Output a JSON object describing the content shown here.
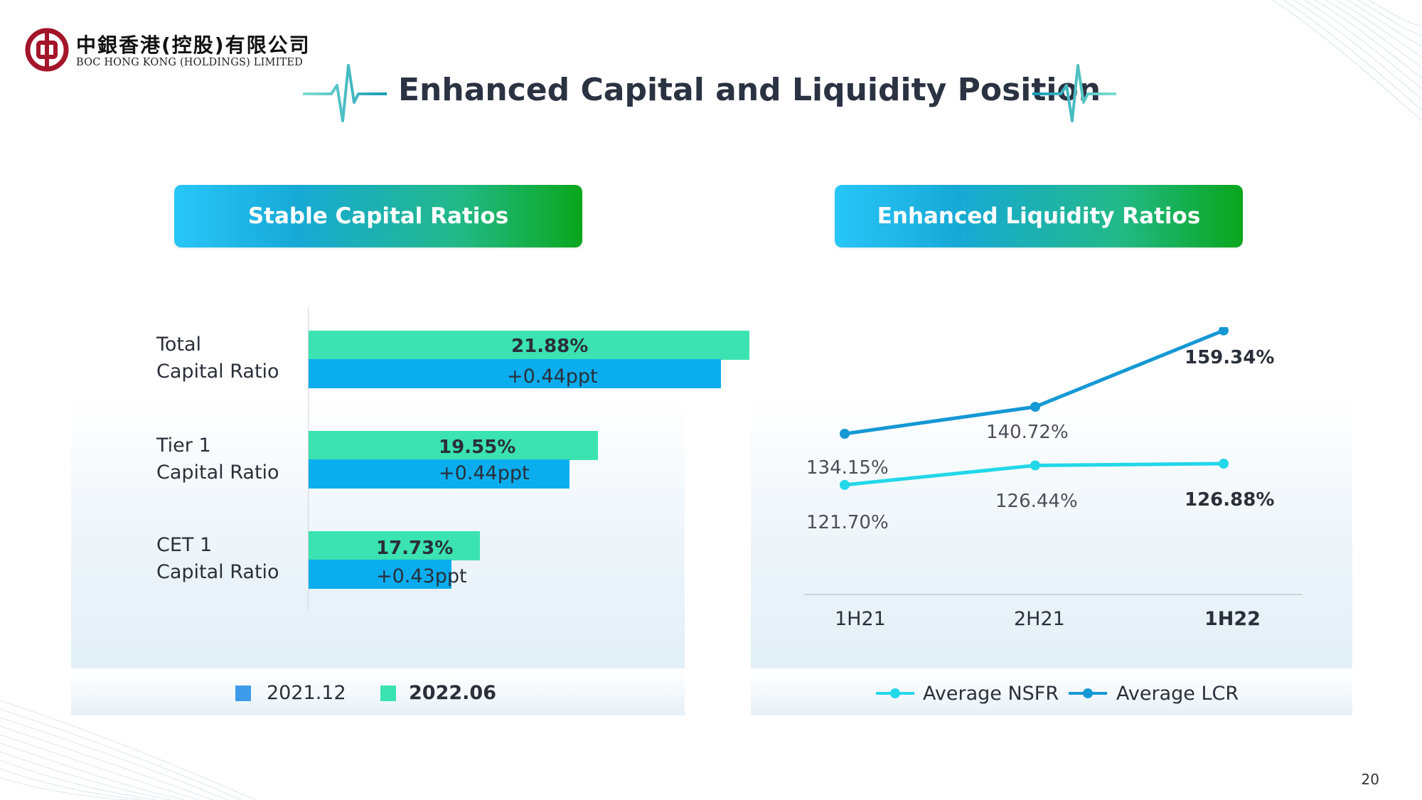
{
  "logo": {
    "chinese_name": "中銀香港(控股)有限公司",
    "english_name": "BOC HONG KONG (HOLDINGS) LIMITED",
    "brand_color": "#a3152a"
  },
  "title": "Enhanced Capital and Liquidity Position",
  "page_number": "20",
  "colors": {
    "bar_2021": "#0aaeef",
    "bar_2022": "#3be3b0",
    "nsfr_line": "#22d7e8",
    "lcr_line": "#1598d4"
  },
  "sections": {
    "left_header": "Stable Capital Ratios",
    "right_header": "Enhanced Liquidity Ratios"
  },
  "chart_data": [
    {
      "type": "bar",
      "orientation": "horizontal",
      "categories": [
        "Total Capital Ratio",
        "Tier 1 Capital Ratio",
        "CET 1 Capital Ratio"
      ],
      "category_lines": [
        [
          "Total",
          "Capital Ratio"
        ],
        [
          "Tier 1",
          "Capital Ratio"
        ],
        [
          "CET 1",
          "Capital Ratio"
        ]
      ],
      "series": [
        {
          "name": "2021.12",
          "values": [
            21.44,
            19.11,
            17.3
          ]
        },
        {
          "name": "2022.06",
          "values": [
            21.88,
            19.55,
            17.73
          ]
        }
      ],
      "value_labels": [
        "21.88%",
        "19.55%",
        "17.73%"
      ],
      "change_labels": [
        "+0.44ppt",
        "+0.44ppt",
        "+0.43ppt"
      ],
      "xlim": [
        0,
        30
      ],
      "legend": {
        "items": [
          "2021.12",
          "2022.06"
        ],
        "bold_item": "2022.06",
        "placement": "bottom"
      }
    },
    {
      "type": "line",
      "x": [
        "1H21",
        "2H21",
        "1H22"
      ],
      "series": [
        {
          "name": "Average NSFR",
          "values": [
            121.7,
            126.44,
            126.88
          ],
          "labels": [
            "121.70%",
            "126.44%",
            "126.88%"
          ]
        },
        {
          "name": "Average LCR",
          "values": [
            134.15,
            140.72,
            159.34
          ],
          "labels": [
            "134.15%",
            "140.72%",
            "159.34%"
          ]
        }
      ],
      "ylim": [
        95,
        165
      ],
      "legend": {
        "items": [
          "Average NSFR",
          "Average LCR"
        ],
        "placement": "bottom"
      }
    }
  ]
}
